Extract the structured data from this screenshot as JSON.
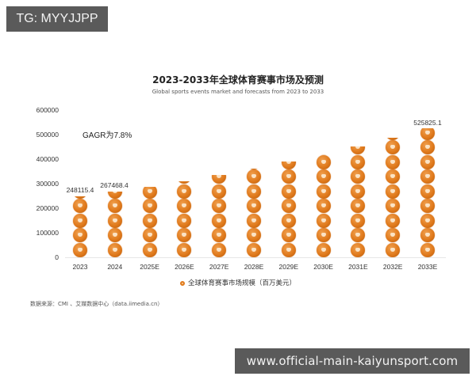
{
  "overlay": {
    "tag_label": "TG: MYYJJPP",
    "watermark_label": "www.official-main-kaiyunsport.com"
  },
  "chart": {
    "title": "2023-2033年全球体育赛事市场及预测",
    "subtitle": "Global sports events market and forecasts from 2023 to 2033",
    "annotation": "GAGR为7.8%",
    "legend_label": "全球体育赛事市场规模（百万美元）",
    "source": "数据来源：CMI 、艾媒数据中心（data.iimedia.cn）",
    "y_ticks": [
      "600000",
      "500000",
      "400000",
      "300000",
      "200000",
      "100000",
      "0"
    ],
    "x_ticks": [
      "2023",
      "2024",
      "2025E",
      "2026E",
      "2027E",
      "2028E",
      "2029E",
      "2030E",
      "2031E",
      "2032E",
      "2033E"
    ],
    "value_labels": {
      "first": "248115.4",
      "second": "267468.4",
      "last": "525825.1"
    },
    "colors": {
      "bar": "#e07a1c",
      "bar_icon": "#fbe3c5",
      "overlay_bg": "#5a5a5a"
    }
  },
  "chart_data": {
    "type": "bar",
    "title": "2023-2033年全球体育赛事市场及预测",
    "subtitle": "Global sports events market and forecasts from 2023 to 2033",
    "categories": [
      "2023",
      "2024",
      "2025E",
      "2026E",
      "2027E",
      "2028E",
      "2029E",
      "2030E",
      "2031E",
      "2032E",
      "2033E"
    ],
    "series": [
      {
        "name": "全球体育赛事市场规模（百万美元）",
        "values": [
          248115.4,
          267468.4,
          288331,
          310821,
          335065,
          361200,
          389373,
          419745,
          452485,
          487778,
          525825.1
        ]
      }
    ],
    "data_labels": {
      "2023": "248115.4",
      "2024": "267468.4",
      "2033E": "525825.1"
    },
    "annotations": [
      "GAGR为7.8%"
    ],
    "xlabel": "",
    "ylabel": "",
    "ylim": [
      0,
      600000
    ],
    "y_ticks": [
      0,
      100000,
      200000,
      300000,
      400000,
      500000,
      600000
    ],
    "grid": false,
    "legend_position": "bottom",
    "source": "数据来源：CMI 、艾媒数据中心（data.iimedia.cn）"
  }
}
